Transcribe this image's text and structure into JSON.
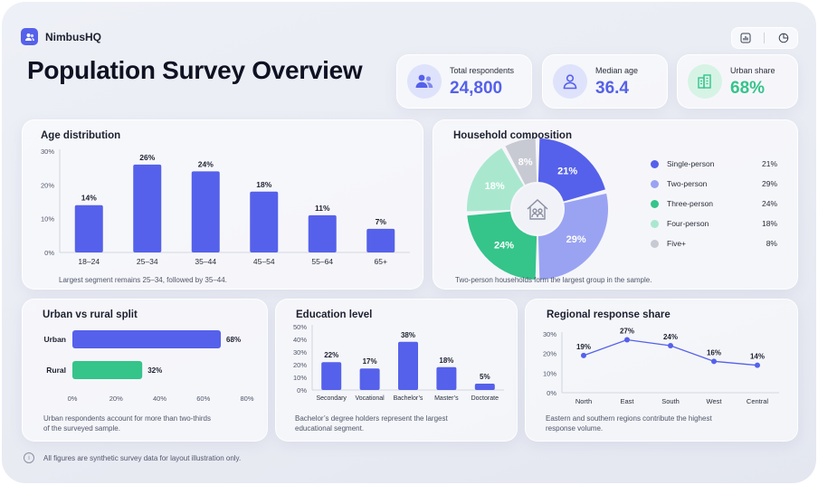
{
  "brand": {
    "name": "NimbusHQ"
  },
  "page_title": "Population Survey Overview",
  "kpis": [
    {
      "label": "Total respondents",
      "value": "24,800",
      "icon": "people-icon",
      "color": "#5561ea"
    },
    {
      "label": "Median age",
      "value": "36.4",
      "icon": "person-icon",
      "color": "#5561ea"
    },
    {
      "label": "Urban share",
      "value": "68%",
      "icon": "buildings-icon",
      "color": "#35c48a"
    }
  ],
  "cards": {
    "age": {
      "title": "Age distribution",
      "note": "Largest segment remains 25–34, followed by 35–44."
    },
    "household": {
      "title": "Household composition",
      "note": "Two-person households form the largest group in the sample."
    },
    "urban": {
      "title": "Urban vs rural split",
      "note1": "Urban respondents account for more than two-thirds",
      "note2": "of the surveyed sample."
    },
    "education": {
      "title": "Education level",
      "note1": "Bachelor’s degree holders represent the largest",
      "note2": "educational segment."
    },
    "regional": {
      "title": "Regional response share",
      "note1": "Eastern and southern regions contribute the highest",
      "note2": "response volume."
    }
  },
  "footer": {
    "note": "All figures are synthetic survey data for layout illustration only."
  },
  "colors": {
    "accent": "#5561ea",
    "green": "#35c48a",
    "lightBlue": "#9aa3f2",
    "mint": "#a9e8cf",
    "gray": "#c8cad3"
  },
  "chart_data": [
    {
      "id": "age",
      "type": "bar",
      "categories": [
        "18–24",
        "25–34",
        "35–44",
        "45–54",
        "55–64",
        "65+"
      ],
      "values": [
        14,
        26,
        24,
        18,
        11,
        7
      ],
      "value_labels": [
        "14%",
        "26%",
        "24%",
        "18%",
        "11%",
        "7%"
      ],
      "yticks": [
        "0%",
        "10%",
        "20%",
        "30%"
      ],
      "ylim": [
        0,
        30
      ]
    },
    {
      "id": "household",
      "type": "pie",
      "categories": [
        "Single-person",
        "Two-person",
        "Three-person",
        "Four-person",
        "Five+"
      ],
      "values": [
        21,
        29,
        24,
        18,
        8
      ],
      "value_labels": [
        "21%",
        "29%",
        "24%",
        "18%",
        "8%"
      ],
      "colors": [
        "#5561ea",
        "#9aa3f2",
        "#35c48a",
        "#a9e8cf",
        "#c8cad3"
      ],
      "center_icon": "house-family-icon"
    },
    {
      "id": "urban",
      "type": "bar",
      "orientation": "horizontal",
      "categories": [
        "Urban",
        "Rural"
      ],
      "values": [
        68,
        32
      ],
      "value_labels": [
        "68%",
        "32%"
      ],
      "colors": [
        "#5561ea",
        "#35c48a"
      ],
      "xticks": [
        "0%",
        "20%",
        "40%",
        "60%",
        "80%"
      ],
      "xlim": [
        0,
        80
      ]
    },
    {
      "id": "education",
      "type": "bar",
      "categories": [
        "Secondary",
        "Vocational",
        "Bachelor’s",
        "Master’s",
        "Doctorate"
      ],
      "values": [
        22,
        17,
        38,
        18,
        5
      ],
      "value_labels": [
        "22%",
        "17%",
        "38%",
        "18%",
        "5%"
      ],
      "yticks": [
        "0%",
        "10%",
        "20%",
        "30%",
        "40%",
        "50%"
      ],
      "ylim": [
        0,
        50
      ]
    },
    {
      "id": "regional",
      "type": "line",
      "categories": [
        "North",
        "East",
        "South",
        "West",
        "Central"
      ],
      "values": [
        19,
        27,
        24,
        16,
        14
      ],
      "value_labels": [
        "19%",
        "27%",
        "24%",
        "16%",
        "14%"
      ],
      "yticks": [
        "0%",
        "10%",
        "20%",
        "30%"
      ],
      "ylim": [
        0,
        30
      ]
    }
  ]
}
